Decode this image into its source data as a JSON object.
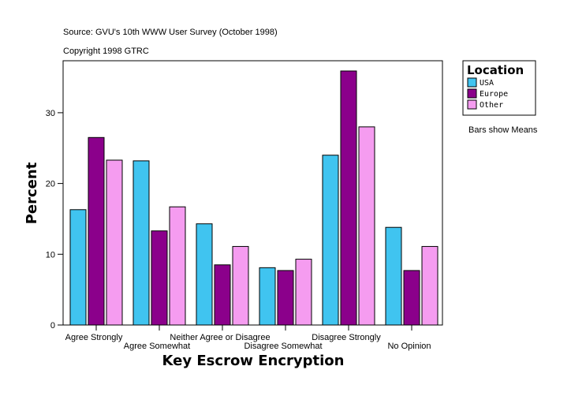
{
  "chart_data": {
    "type": "bar",
    "title": "Source: GVU's 10th WWW User Survey (October 1998)",
    "subtitle": "Copyright 1998 GTRC",
    "xlabel": "Key Escrow Encryption",
    "ylabel": "Percent",
    "ylim": [
      0,
      37
    ],
    "yticks": [
      0,
      10,
      20,
      30
    ],
    "categories": [
      "Agree Strongly",
      "Agree Somewhat",
      "Neither Agree or Disagree",
      "Disagree Somewhat",
      "Disagree Strongly",
      "No Opinion"
    ],
    "legend_title": "Location",
    "legend_placement": "right",
    "note": "Bars show Means",
    "grid": false,
    "series": [
      {
        "name": "USA",
        "color": "#40C4F0",
        "values": [
          16.3,
          23.2,
          14.3,
          8.1,
          24.0,
          13.8
        ]
      },
      {
        "name": "Europe",
        "color": "#8B008B",
        "values": [
          26.5,
          13.3,
          8.5,
          7.7,
          35.9,
          7.7
        ]
      },
      {
        "name": "Other",
        "color": "#F59CF0",
        "values": [
          23.3,
          16.7,
          11.1,
          9.3,
          28.0,
          11.1
        ]
      }
    ]
  }
}
